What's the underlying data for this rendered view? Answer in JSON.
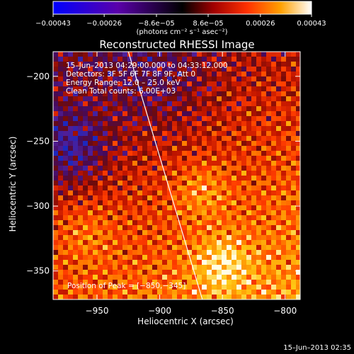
{
  "chart_data": {
    "type": "heatmap",
    "title": "Reconstructed RHESSI Image",
    "xlabel": "Heliocentric X (arcsec)",
    "ylabel": "Heliocentric Y (arcsec)",
    "xlim": [
      -985,
      -788
    ],
    "ylim": [
      -372,
      -181
    ],
    "x_ticks": [
      -950,
      -900,
      -850,
      -800
    ],
    "y_ticks": [
      -200,
      -250,
      -300,
      -350
    ],
    "x_tick_labels": [
      "−950",
      "−900",
      "−850",
      "−800"
    ],
    "y_tick_labels": [
      "−200",
      "−250",
      "−300",
      "−350"
    ],
    "colorbar": {
      "range": [
        -0.00043,
        0.00043
      ],
      "tick_values": [
        -0.00043,
        -0.00026,
        -8.6e-05,
        8.6e-05,
        0.00026,
        0.00043
      ],
      "tick_labels": [
        "−0.00043",
        "−0.00026",
        "−8.6e−05",
        "8.6e−05",
        "0.00026",
        "0.00043"
      ],
      "units": "(photons cm⁻² s⁻¹ asec⁻²)"
    },
    "info_lines": [
      "15–Jun–2013 04:29:00.000 to 04:33:12.000",
      "Detectors: 3F 5F 6F 7F 8F 9F, Att 0",
      "Energy Range: 12.0 – 25.0 keV",
      "Clean     Total counts: 6.00E+03"
    ],
    "peak_label": "Position of Peak = [−850,−345]",
    "peak_position": [
      -850,
      -345
    ],
    "limb_line": [
      [
        -925,
        -181
      ],
      [
        -866,
        -372
      ]
    ],
    "grid": false,
    "timestamp": "15–Jun–2013 02:35"
  }
}
